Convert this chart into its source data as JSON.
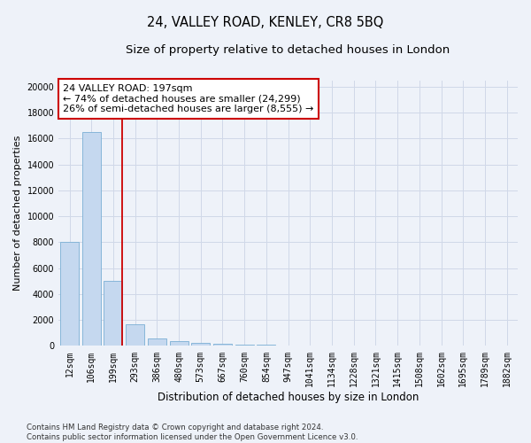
{
  "title": "24, VALLEY ROAD, KENLEY, CR8 5BQ",
  "subtitle": "Size of property relative to detached houses in London",
  "xlabel": "Distribution of detached houses by size in London",
  "ylabel": "Number of detached properties",
  "categories": [
    "12sqm",
    "106sqm",
    "199sqm",
    "293sqm",
    "386sqm",
    "480sqm",
    "573sqm",
    "667sqm",
    "760sqm",
    "854sqm",
    "947sqm",
    "1041sqm",
    "1134sqm",
    "1228sqm",
    "1321sqm",
    "1415sqm",
    "1508sqm",
    "1602sqm",
    "1695sqm",
    "1789sqm",
    "1882sqm"
  ],
  "values": [
    8050,
    16500,
    5000,
    1700,
    580,
    350,
    230,
    170,
    120,
    75,
    48,
    28,
    18,
    11,
    7,
    5,
    3,
    2,
    2,
    1,
    1
  ],
  "bar_color": "#c5d8ef",
  "bar_edge_color": "#7aafd4",
  "vline_x_index": 2,
  "vline_color": "#cc0000",
  "annotation_text": "24 VALLEY ROAD: 197sqm\n← 74% of detached houses are smaller (24,299)\n26% of semi-detached houses are larger (8,555) →",
  "annotation_box_facecolor": "#ffffff",
  "annotation_box_edgecolor": "#cc0000",
  "ylim": [
    0,
    20500
  ],
  "yticks": [
    0,
    2000,
    4000,
    6000,
    8000,
    10000,
    12000,
    14000,
    16000,
    18000,
    20000
  ],
  "title_fontsize": 10.5,
  "subtitle_fontsize": 9.5,
  "xlabel_fontsize": 8.5,
  "ylabel_fontsize": 8,
  "tick_fontsize": 7,
  "annot_fontsize": 8,
  "footnote": "Contains HM Land Registry data © Crown copyright and database right 2024.\nContains public sector information licensed under the Open Government Licence v3.0.",
  "background_color": "#eef2f9",
  "grid_color": "#d0d8e8"
}
